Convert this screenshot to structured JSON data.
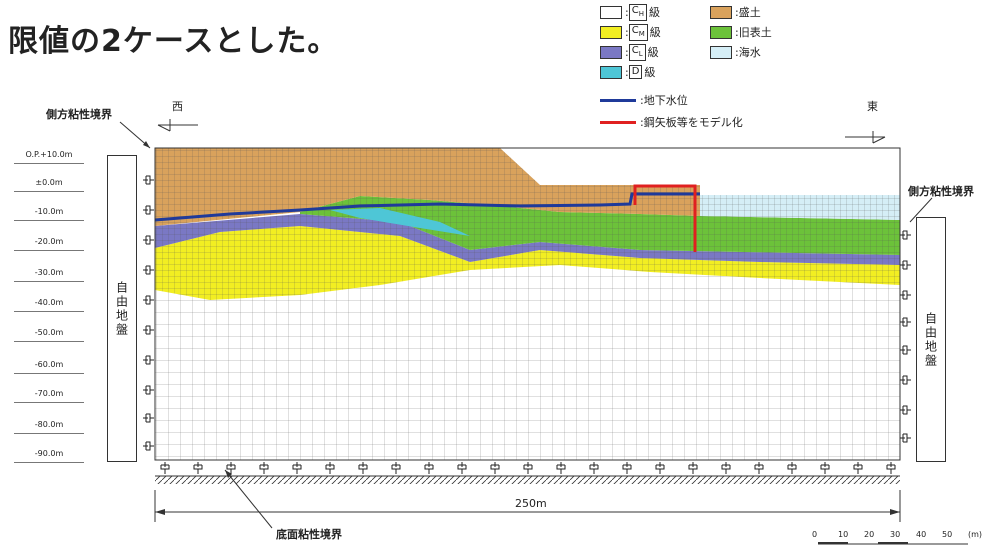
{
  "heading": "限値の2ケースとした。",
  "legend": {
    "items": [
      {
        "label": "C",
        "sub": "H",
        "suffix": "級",
        "color": "#ffffff"
      },
      {
        "label": "",
        "sub": "",
        "suffix": "盛土",
        "color": "#d9a25c"
      },
      {
        "label": "C",
        "sub": "M",
        "suffix": "級",
        "color": "#f2ee22"
      },
      {
        "label": "",
        "sub": "",
        "suffix": "旧表土",
        "color": "#6cc23a"
      },
      {
        "label": "C",
        "sub": "L",
        "suffix": "級",
        "color": "#7a78c4"
      },
      {
        "label": "",
        "sub": "",
        "suffix": "海水",
        "color": "#d5eef6"
      },
      {
        "label": "D",
        "sub": "",
        "suffix": "級",
        "color": "#4ec6d6"
      }
    ],
    "separator": ":",
    "groundwater_label": "地下水位",
    "sheetpile_label": "鋼矢板等をモデル化",
    "groundwater_color": "#1f3a9a",
    "sheetpile_color": "#e02020"
  },
  "directions": {
    "west": "西",
    "east": "東"
  },
  "boundaries": {
    "left_lateral": "側方粘性境界",
    "right_lateral": "側方粘性境界",
    "bottom": "底面粘性境界"
  },
  "free_ground_left": "自由地盤",
  "free_ground_right": "自由地盤",
  "elevations": [
    "O.P.+10.0m",
    "±0.0m",
    "-10.0m",
    "-20.0m",
    "-30.0m",
    "-40.0m",
    "-50.0m",
    "-60.0m",
    "-70.0m",
    "-80.0m",
    "-90.0m"
  ],
  "dimension_label": "250m",
  "scale": {
    "ticks": [
      "0",
      "10",
      "20",
      "30",
      "40",
      "50"
    ],
    "unit": "(m)"
  }
}
